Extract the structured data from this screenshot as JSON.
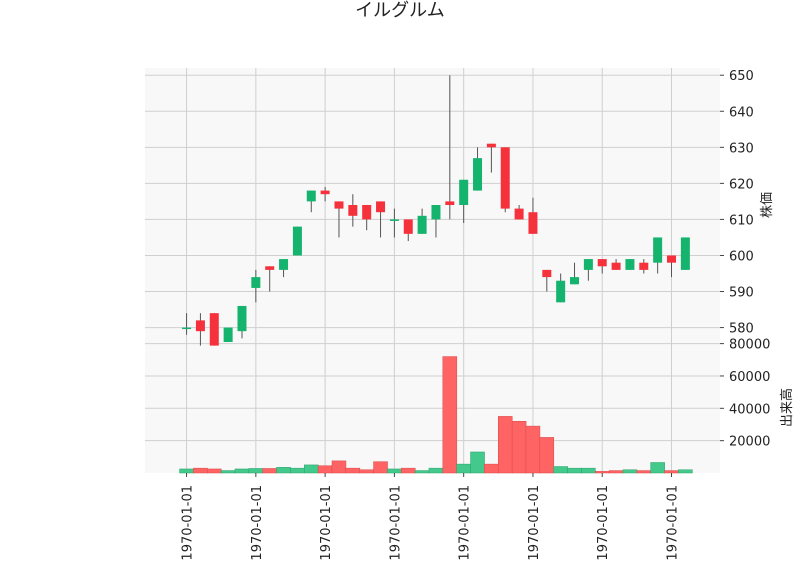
{
  "chart_data": {
    "type": "candlestick",
    "title": "イルグルム",
    "up_color": "#14b46e",
    "down_color": "#f5323c",
    "volume_up_color": "#44c98c",
    "volume_down_color": "#ff6464",
    "grid": true,
    "price_panel": {
      "ylabel": "株価",
      "ylim": [
        576,
        652
      ],
      "yticks": [
        580,
        590,
        600,
        610,
        620,
        630,
        640,
        650
      ],
      "ytick_labels": [
        "580",
        "590",
        "600",
        "610",
        "620",
        "630",
        "640",
        "650"
      ]
    },
    "volume_panel": {
      "ylabel": "出来高",
      "ylim": [
        0,
        81000
      ],
      "yticks": [
        20000,
        40000,
        60000,
        80000
      ],
      "ytick_labels": [
        "20000",
        "40000",
        "60000",
        "80000"
      ]
    },
    "xtick_labels": [
      "1970-01-01",
      "1970-01-01",
      "1970-01-01",
      "1970-01-01",
      "1970-01-01",
      "1970-01-01",
      "1970-01-01",
      "1970-01-01"
    ],
    "xtick_positions": [
      0.5,
      5.5,
      10.5,
      15.5,
      20.5,
      25.5,
      30.5,
      35.5
    ],
    "candles": [
      {
        "open": 580,
        "close": 580,
        "high": 584,
        "low": 578,
        "volume": 2500
      },
      {
        "open": 582,
        "close": 579,
        "high": 584,
        "low": 575,
        "volume": 3000
      },
      {
        "open": 584,
        "close": 575,
        "high": 584,
        "low": 575,
        "volume": 2500
      },
      {
        "open": 576,
        "close": 580,
        "high": 580,
        "low": 576,
        "volume": 1500
      },
      {
        "open": 579,
        "close": 586,
        "high": 586,
        "low": 577,
        "volume": 2500
      },
      {
        "open": 591,
        "close": 594,
        "high": 596,
        "low": 587,
        "volume": 2800
      },
      {
        "open": 597,
        "close": 596,
        "high": 597,
        "low": 590,
        "volume": 2800
      },
      {
        "open": 596,
        "close": 599,
        "high": 599,
        "low": 594,
        "volume": 3500
      },
      {
        "open": 600,
        "close": 608,
        "high": 608,
        "low": 600,
        "volume": 3000
      },
      {
        "open": 615,
        "close": 618,
        "high": 618,
        "low": 612,
        "volume": 5000
      },
      {
        "open": 618,
        "close": 617,
        "high": 619,
        "low": 615,
        "volume": 4500
      },
      {
        "open": 615,
        "close": 613,
        "high": 615,
        "low": 605,
        "volume": 7500
      },
      {
        "open": 614,
        "close": 611,
        "high": 617,
        "low": 608,
        "volume": 3000
      },
      {
        "open": 614,
        "close": 610,
        "high": 614,
        "low": 607,
        "volume": 2000
      },
      {
        "open": 615,
        "close": 612,
        "high": 615,
        "low": 605,
        "volume": 7000
      },
      {
        "open": 610,
        "close": 610,
        "high": 613,
        "low": 605,
        "volume": 2500
      },
      {
        "open": 610,
        "close": 606,
        "high": 610,
        "low": 604,
        "volume": 3000
      },
      {
        "open": 606,
        "close": 611,
        "high": 613,
        "low": 606,
        "volume": 1500
      },
      {
        "open": 610,
        "close": 614,
        "high": 614,
        "low": 605,
        "volume": 3000
      },
      {
        "open": 615,
        "close": 614,
        "high": 650,
        "low": 610,
        "volume": 72000
      },
      {
        "open": 614,
        "close": 621,
        "high": 621,
        "low": 609,
        "volume": 5500
      },
      {
        "open": 618,
        "close": 627,
        "high": 630,
        "low": 618,
        "volume": 13000
      },
      {
        "open": 631,
        "close": 630,
        "high": 631,
        "low": 623,
        "volume": 5500
      },
      {
        "open": 630,
        "close": 613,
        "high": 630,
        "low": 612,
        "volume": 35000
      },
      {
        "open": 613,
        "close": 610,
        "high": 614,
        "low": 610,
        "volume": 32000
      },
      {
        "open": 612,
        "close": 606,
        "high": 616,
        "low": 606,
        "volume": 29000
      },
      {
        "open": 596,
        "close": 594,
        "high": 596,
        "low": 590,
        "volume": 22000
      },
      {
        "open": 587,
        "close": 593,
        "high": 595,
        "low": 587,
        "volume": 4000
      },
      {
        "open": 592,
        "close": 594,
        "high": 598,
        "low": 592,
        "volume": 3000
      },
      {
        "open": 596,
        "close": 599,
        "high": 599,
        "low": 593,
        "volume": 3000
      },
      {
        "open": 599,
        "close": 597,
        "high": 599,
        "low": 595,
        "volume": 1000
      },
      {
        "open": 598,
        "close": 596,
        "high": 599,
        "low": 596,
        "volume": 1500
      },
      {
        "open": 596,
        "close": 599,
        "high": 599,
        "low": 596,
        "volume": 2000
      },
      {
        "open": 598,
        "close": 596,
        "high": 599,
        "low": 595,
        "volume": 1500
      },
      {
        "open": 598,
        "close": 605,
        "high": 605,
        "low": 595,
        "volume": 6500
      },
      {
        "open": 600,
        "close": 598,
        "high": 600,
        "low": 594,
        "volume": 1500
      },
      {
        "open": 596,
        "close": 605,
        "high": 605,
        "low": 596,
        "volume": 2000
      }
    ]
  }
}
